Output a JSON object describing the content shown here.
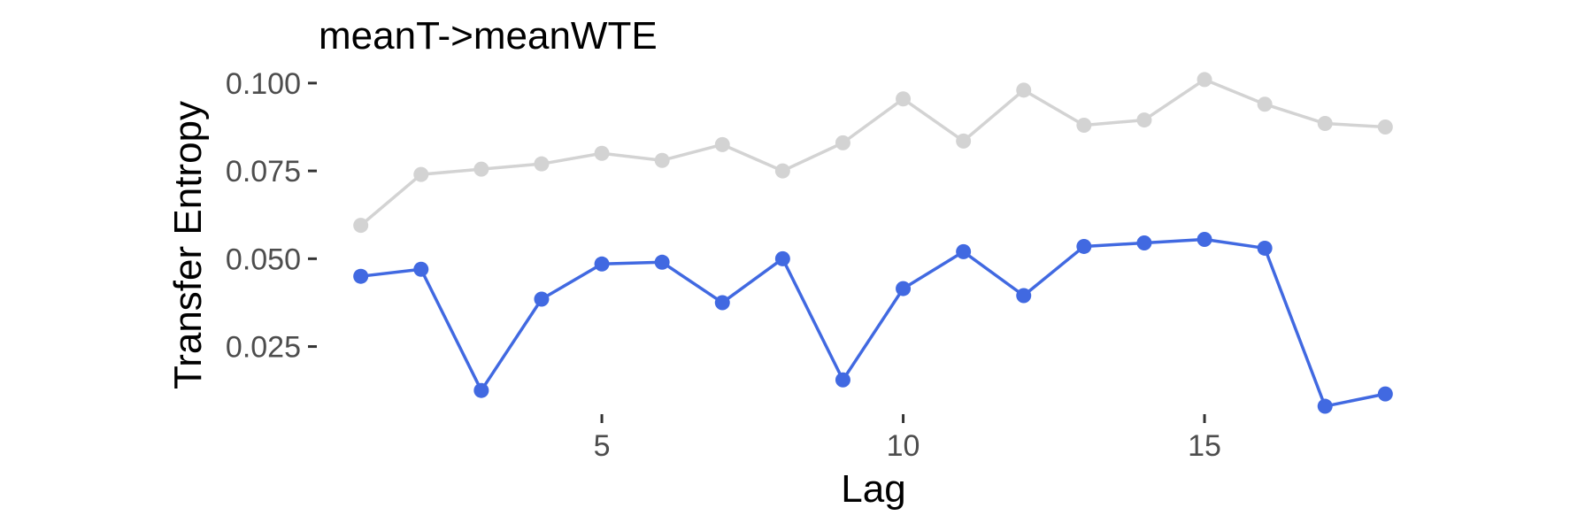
{
  "chart_data": {
    "type": "line",
    "title": "meanT->meanWTE",
    "xlabel": "Lag",
    "ylabel": "Transfer Entropy",
    "xlim": [
      0.3,
      18.7
    ],
    "ylim": [
      0.0065,
      0.1035
    ],
    "x_ticks": [
      5,
      10,
      15
    ],
    "x_tick_labels": [
      "5",
      "10",
      "15"
    ],
    "y_ticks": [
      0.025,
      0.05,
      0.075,
      0.1
    ],
    "y_tick_labels": [
      "0.025",
      "0.050",
      "0.075",
      "0.100"
    ],
    "grid": false,
    "legend": "none",
    "x": [
      1,
      2,
      3,
      4,
      5,
      6,
      7,
      8,
      9,
      10,
      11,
      12,
      13,
      14,
      15,
      16,
      17,
      18
    ],
    "series": [
      {
        "color": "#d3d3d3",
        "values": [
          0.0595,
          0.074,
          0.0755,
          0.077,
          0.08,
          0.078,
          0.0825,
          0.075,
          0.083,
          0.0955,
          0.0835,
          0.098,
          0.088,
          0.0895,
          0.101,
          0.094,
          0.0885,
          0.0875
        ]
      },
      {
        "color": "#4169e1",
        "values": [
          0.045,
          0.047,
          0.0125,
          0.0385,
          0.0485,
          0.049,
          0.0375,
          0.05,
          0.0155,
          0.0415,
          0.052,
          0.0395,
          0.0535,
          0.0545,
          0.0555,
          0.053,
          0.008,
          0.0115
        ]
      }
    ]
  }
}
